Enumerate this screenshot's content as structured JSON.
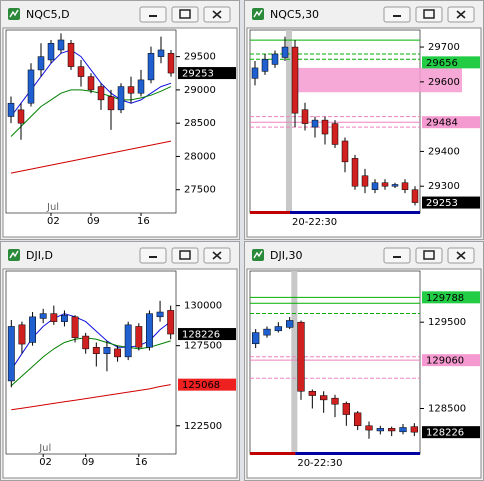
{
  "chart_data": [
    {
      "type": "candlestick",
      "title": "NQC5,D",
      "ylim": [
        27150,
        29900
      ],
      "yticks": [
        27500,
        28000,
        28500,
        29000,
        29500
      ],
      "categories": [
        null,
        null,
        null,
        null,
        "02",
        null,
        null,
        null,
        "09",
        null,
        null,
        null,
        null,
        "16",
        null,
        null,
        null
      ],
      "month_label": "Jul",
      "month_at": 4,
      "open": [
        28600,
        28700,
        28800,
        29300,
        29450,
        29600,
        29700,
        29350,
        29200,
        29050,
        28900,
        28700,
        29050,
        28950,
        29150,
        29500,
        29550
      ],
      "high": [
        28900,
        28800,
        29400,
        29700,
        29750,
        29850,
        29750,
        29450,
        29250,
        29100,
        29000,
        29100,
        29200,
        29300,
        29650,
        29800,
        29600
      ],
      "low": [
        28500,
        28250,
        28750,
        29200,
        29400,
        29550,
        29300,
        29050,
        28950,
        28700,
        28400,
        28650,
        28800,
        28900,
        29100,
        29400,
        29200
      ],
      "close": [
        28800,
        28500,
        29300,
        29500,
        29700,
        29750,
        29350,
        29200,
        29000,
        28850,
        28700,
        29050,
        28950,
        29150,
        29550,
        29600,
        29253
      ],
      "lines": [
        {
          "color": "#1010e0",
          "values": [
            28600,
            28800,
            29000,
            29200,
            29400,
            29550,
            29600,
            29500,
            29300,
            29100,
            28950,
            28850,
            28800,
            28850,
            28950,
            29050,
            29100
          ]
        },
        {
          "color": "#008000",
          "values": [
            28300,
            28450,
            28600,
            28750,
            28850,
            28950,
            29000,
            29000,
            28980,
            28950,
            28900,
            28850,
            28850,
            28880,
            28920,
            28980,
            29050
          ]
        },
        {
          "color": "#d00000",
          "values": [
            27750,
            27780,
            27810,
            27840,
            27870,
            27900,
            27930,
            27960,
            27990,
            28020,
            28050,
            28080,
            28110,
            28140,
            28170,
            28200,
            28230
          ]
        }
      ],
      "levels": [],
      "zones": [],
      "price_labels": [
        {
          "value": 29253,
          "color": "#000000",
          "text_color": "#ffffff"
        }
      ]
    },
    {
      "type": "candlestick",
      "title": "NQC5,30",
      "ylim": [
        29223,
        29749
      ],
      "yticks": [
        29300,
        29400,
        29600,
        29700
      ],
      "time_label": "20-22:30",
      "session_at": 4,
      "open": [
        29610,
        29630,
        29650,
        29670,
        29700,
        29520,
        29470,
        29490,
        29480,
        29430,
        29380,
        29330,
        29290,
        29310,
        29300,
        29310,
        29290
      ],
      "high": [
        29660,
        29680,
        29690,
        29730,
        29720,
        29540,
        29500,
        29500,
        29490,
        29440,
        29390,
        29350,
        29320,
        29320,
        29310,
        29320,
        29300
      ],
      "low": [
        29590,
        29620,
        29640,
        29660,
        29470,
        29460,
        29440,
        29420,
        29410,
        29340,
        29290,
        29280,
        29280,
        29290,
        29295,
        29280,
        29245
      ],
      "close": [
        29640,
        29665,
        29680,
        29700,
        29510,
        29480,
        29490,
        29450,
        29420,
        29370,
        29300,
        29300,
        29310,
        29300,
        29305,
        29290,
        29253
      ],
      "lines": [],
      "levels": [
        {
          "value": 29720,
          "color": "#00b000",
          "dash": false
        },
        {
          "value": 29680,
          "color": "#00b000",
          "dash": true
        },
        {
          "value": 29665,
          "color": "#00b000",
          "dash": true
        },
        {
          "value": 29500,
          "color": "#f080c0",
          "dash": true
        },
        {
          "value": 29484,
          "color": "#f080c0",
          "dash": false
        },
        {
          "value": 29470,
          "color": "#f080c0",
          "dash": true
        }
      ],
      "zones": [
        {
          "from": 29570,
          "to": 29640,
          "color": "#f59ad0"
        }
      ],
      "price_labels": [
        {
          "value": 29656,
          "color": "#22cc44",
          "text_color": "#000000"
        },
        {
          "value": 29484,
          "color": "#f59ad0",
          "text_color": "#000000"
        },
        {
          "value": 29253,
          "color": "#000000",
          "text_color": "#ffffff"
        }
      ]
    },
    {
      "type": "candlestick",
      "title": "DJI,D",
      "ylim": [
        120740,
        132160
      ],
      "yticks": [
        122500,
        127500,
        130000
      ],
      "categories": [
        null,
        null,
        null,
        "02",
        null,
        null,
        null,
        "09",
        null,
        null,
        null,
        null,
        "16",
        null,
        null,
        null
      ],
      "month_label": "Jul",
      "month_at": 3,
      "open": [
        125300,
        128800,
        127700,
        129200,
        129500,
        129000,
        129300,
        128100,
        127400,
        127000,
        127300,
        126800,
        128700,
        127400,
        129300,
        129700
      ],
      "high": [
        129100,
        129000,
        129600,
        129800,
        130000,
        129700,
        129400,
        128300,
        127700,
        127800,
        127500,
        129000,
        128900,
        129700,
        130300,
        130000
      ],
      "low": [
        124900,
        127000,
        127500,
        128900,
        128800,
        128700,
        127700,
        127000,
        126200,
        125900,
        126500,
        126600,
        127200,
        127200,
        129000,
        127900
      ],
      "close": [
        128700,
        127600,
        129300,
        129500,
        129000,
        129400,
        128000,
        127300,
        127000,
        127400,
        126800,
        128800,
        127400,
        129500,
        129600,
        128226
      ],
      "lines": [
        {
          "color": "#1010e0",
          "values": [
            126000,
            127000,
            128000,
            128700,
            129200,
            129500,
            129300,
            129000,
            128400,
            127800,
            127400,
            127400,
            127500,
            127800,
            128500,
            129000
          ]
        },
        {
          "color": "#008000",
          "values": [
            125000,
            125600,
            126200,
            126800,
            127300,
            127700,
            127900,
            128000,
            127900,
            127700,
            127500,
            127400,
            127300,
            127400,
            127600,
            127800
          ]
        },
        {
          "color": "#d00000",
          "values": [
            123500,
            123600,
            123700,
            123800,
            123900,
            124000,
            124100,
            124200,
            124300,
            124400,
            124500,
            124600,
            124700,
            124800,
            124950,
            125068
          ]
        }
      ],
      "levels": [],
      "zones": [],
      "price_labels": [
        {
          "value": 128226,
          "color": "#000000",
          "text_color": "#ffffff"
        },
        {
          "value": 125068,
          "color": "#ee2020",
          "text_color": "#000000"
        }
      ]
    },
    {
      "type": "candlestick",
      "title": "DJI,30",
      "ylim": [
        127973,
        130093
      ],
      "yticks": [
        128500,
        129500
      ],
      "time_label": "20-22:30",
      "session_at": 4,
      "open": [
        129250,
        129350,
        129400,
        129440,
        129500,
        128700,
        128650,
        128620,
        128560,
        128450,
        128300,
        128240,
        128270,
        128230,
        128290
      ],
      "high": [
        129420,
        129450,
        129500,
        129560,
        129520,
        128720,
        128700,
        128660,
        128580,
        128470,
        128350,
        128300,
        128290,
        128320,
        128330
      ],
      "low": [
        129200,
        129320,
        129380,
        129420,
        128600,
        128500,
        128450,
        128400,
        128300,
        128250,
        128150,
        128200,
        128180,
        128200,
        128180
      ],
      "close": [
        129380,
        129420,
        129450,
        129520,
        128700,
        128650,
        128600,
        128550,
        128430,
        128300,
        128250,
        128270,
        128240,
        128280,
        128226
      ],
      "lines": [],
      "levels": [
        {
          "value": 129788,
          "color": "#00b000",
          "dash": false
        },
        {
          "value": 129720,
          "color": "#00b000",
          "dash": false
        },
        {
          "value": 129600,
          "color": "#00b000",
          "dash": true
        },
        {
          "value": 129100,
          "color": "#f080c0",
          "dash": true
        },
        {
          "value": 129060,
          "color": "#f080c0",
          "dash": false
        },
        {
          "value": 128850,
          "color": "#f080c0",
          "dash": true
        }
      ],
      "zones": [],
      "price_labels": [
        {
          "value": 129788,
          "color": "#22cc44",
          "text_color": "#000000"
        },
        {
          "value": 129060,
          "color": "#f59ad0",
          "text_color": "#000000"
        },
        {
          "value": 128226,
          "color": "#000000",
          "text_color": "#ffffff"
        }
      ]
    }
  ]
}
